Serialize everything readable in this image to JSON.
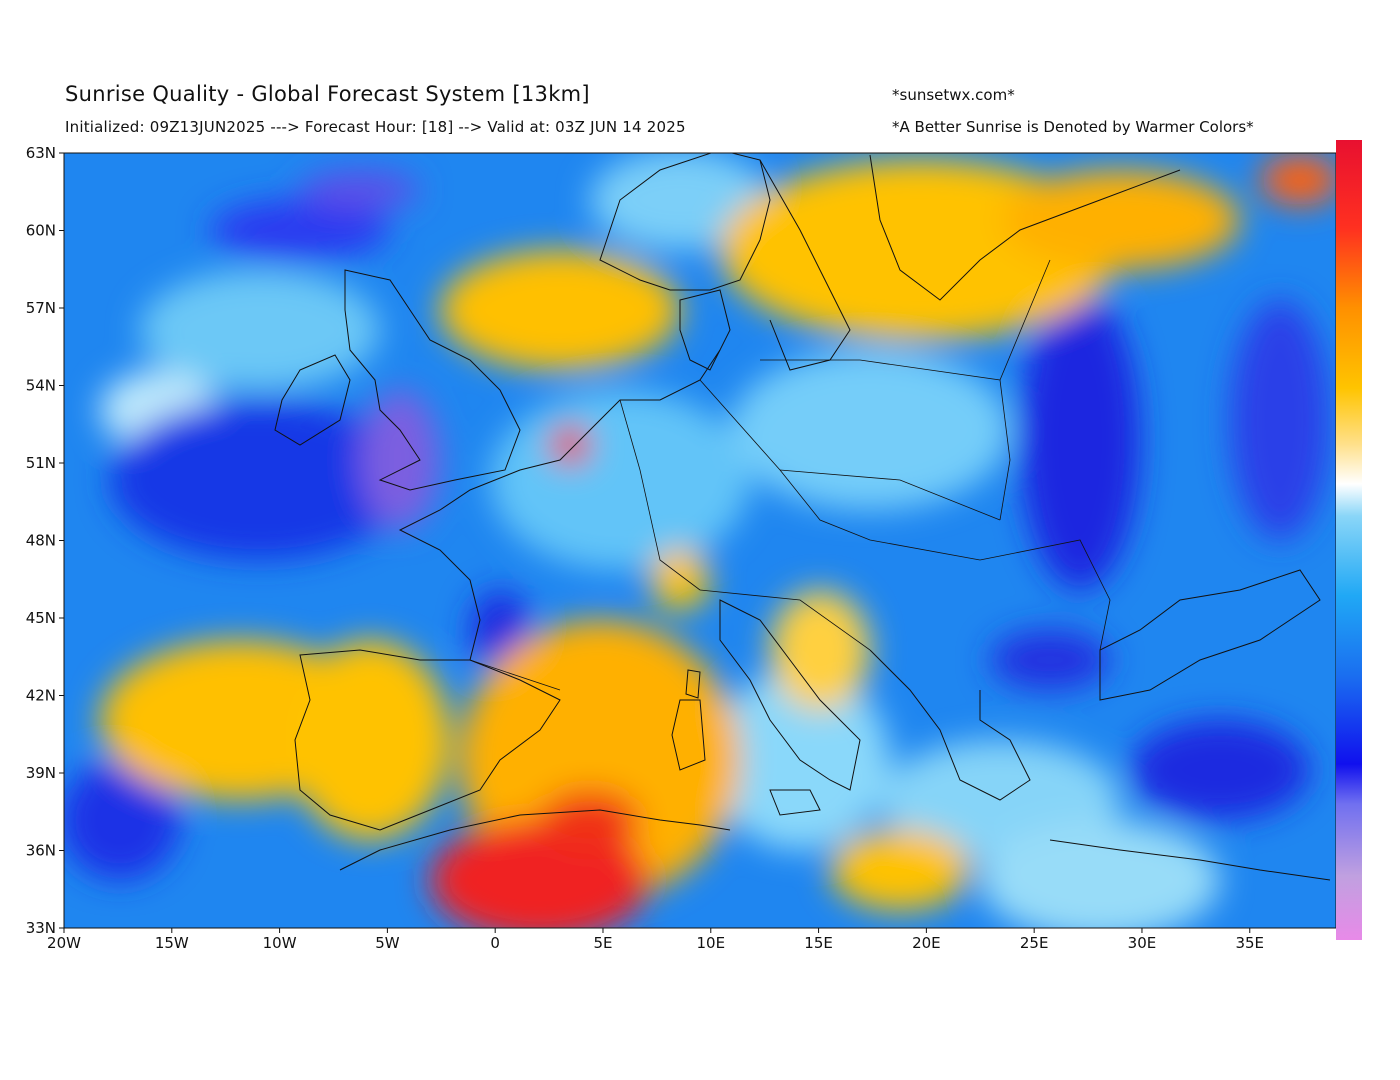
{
  "header": {
    "title": "Sunrise Quality - Global Forecast System [13km]",
    "subtitle": "Initialized: 09Z13JUN2025 ---> Forecast Hour: [18] --> Valid at: 03Z JUN 14 2025",
    "site": "*sunsetwx.com*",
    "note": "*A Better Sunrise is Denoted by Warmer Colors*"
  },
  "map": {
    "region": "Europe",
    "lon_range": [
      -20,
      39
    ],
    "lat_range": [
      33,
      63
    ],
    "lon_ticks": [
      "20W",
      "15W",
      "10W",
      "5W",
      "0",
      "5E",
      "10E",
      "15E",
      "20E",
      "25E",
      "30E",
      "35E"
    ],
    "lat_ticks": [
      "63N",
      "60N",
      "57N",
      "54N",
      "51N",
      "48N",
      "45N",
      "42N",
      "39N",
      "36N",
      "33N"
    ]
  },
  "colorbar": {
    "colors_bottom_to_top": [
      "#e88ae8",
      "#c0a0e0",
      "#7070f0",
      "#1010ee",
      "#1a6ef0",
      "#20a8f5",
      "#8ad6f8",
      "#ffffff",
      "#ffe08a",
      "#ffc400",
      "#ff9000",
      "#ff3020",
      "#e81030"
    ]
  }
}
